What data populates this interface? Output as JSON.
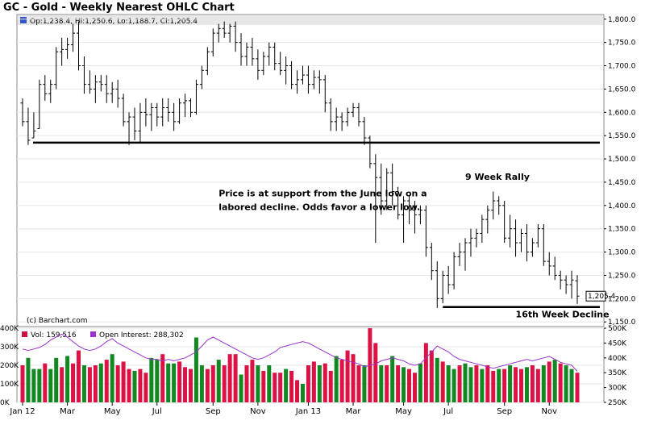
{
  "chart_data": {
    "type": "ohlc",
    "title": "GC - Gold - Weekly Nearest OHLC Chart",
    "info_line": "Op:1,238.4, Hi:1,250.6, Lo:1,188.7, Cl:1,205.4",
    "copyright": "(c) Barchart.com",
    "price_axis": {
      "min": 1140,
      "max": 1810,
      "ticks": [
        "1,150.0",
        "1,200.0",
        "1,250.0",
        "1,300.0",
        "1,350.0",
        "1,400.0",
        "1,450.0",
        "1,500.0",
        "1,550.0",
        "1,600.0",
        "1,650.0",
        "1,700.0",
        "1,750.0",
        "1,800.0"
      ],
      "tick_values": [
        1150,
        1200,
        1250,
        1300,
        1350,
        1400,
        1450,
        1500,
        1550,
        1600,
        1650,
        1700,
        1750,
        1800
      ]
    },
    "last_price_label": "1,205.4",
    "last_price": 1205.4,
    "x_labels": [
      "Jan 12",
      "Mar",
      "May",
      "Jul",
      "Sep",
      "Nov",
      "Jan 13",
      "Mar",
      "May",
      "Jul",
      "Sep",
      "Nov"
    ],
    "x_label_weeks": [
      1,
      9,
      17,
      25,
      35,
      43,
      52,
      60,
      69,
      77,
      87,
      95
    ],
    "ohlc": [
      [
        1620,
        1630,
        1570,
        1580
      ],
      [
        1580,
        1610,
        1530,
        1540
      ],
      [
        1545,
        1600,
        1545,
        1560
      ],
      [
        1565,
        1670,
        1565,
        1660
      ],
      [
        1660,
        1680,
        1625,
        1640
      ],
      [
        1640,
        1670,
        1620,
        1660
      ],
      [
        1660,
        1740,
        1650,
        1730
      ],
      [
        1730,
        1760,
        1700,
        1735
      ],
      [
        1735,
        1760,
        1715,
        1745
      ],
      [
        1745,
        1790,
        1730,
        1770
      ],
      [
        1770,
        1795,
        1690,
        1700
      ],
      [
        1700,
        1720,
        1640,
        1660
      ],
      [
        1660,
        1690,
        1640,
        1650
      ],
      [
        1650,
        1680,
        1620,
        1665
      ],
      [
        1665,
        1680,
        1645,
        1660
      ],
      [
        1660,
        1680,
        1620,
        1640
      ],
      [
        1640,
        1665,
        1620,
        1650
      ],
      [
        1650,
        1670,
        1610,
        1630
      ],
      [
        1630,
        1640,
        1570,
        1580
      ],
      [
        1580,
        1600,
        1530,
        1590
      ],
      [
        1590,
        1610,
        1540,
        1560
      ],
      [
        1560,
        1620,
        1535,
        1600
      ],
      [
        1600,
        1630,
        1570,
        1595
      ],
      [
        1595,
        1620,
        1560,
        1610
      ],
      [
        1610,
        1620,
        1570,
        1590
      ],
      [
        1590,
        1630,
        1570,
        1610
      ],
      [
        1610,
        1630,
        1580,
        1600
      ],
      [
        1600,
        1620,
        1560,
        1580
      ],
      [
        1580,
        1630,
        1575,
        1620
      ],
      [
        1620,
        1640,
        1590,
        1625
      ],
      [
        1625,
        1630,
        1590,
        1600
      ],
      [
        1600,
        1670,
        1595,
        1660
      ],
      [
        1660,
        1700,
        1650,
        1690
      ],
      [
        1690,
        1740,
        1680,
        1730
      ],
      [
        1730,
        1780,
        1720,
        1770
      ],
      [
        1770,
        1790,
        1750,
        1780
      ],
      [
        1780,
        1795,
        1760,
        1770
      ],
      [
        1770,
        1790,
        1750,
        1785
      ],
      [
        1785,
        1795,
        1730,
        1750
      ],
      [
        1750,
        1770,
        1700,
        1720
      ],
      [
        1720,
        1750,
        1700,
        1740
      ],
      [
        1740,
        1760,
        1700,
        1715
      ],
      [
        1715,
        1735,
        1670,
        1690
      ],
      [
        1690,
        1730,
        1680,
        1720
      ],
      [
        1720,
        1750,
        1700,
        1740
      ],
      [
        1740,
        1750,
        1690,
        1705
      ],
      [
        1705,
        1730,
        1680,
        1690
      ],
      [
        1690,
        1720,
        1660,
        1700
      ],
      [
        1700,
        1710,
        1650,
        1660
      ],
      [
        1660,
        1690,
        1640,
        1670
      ],
      [
        1670,
        1700,
        1660,
        1680
      ],
      [
        1680,
        1700,
        1640,
        1660
      ],
      [
        1660,
        1690,
        1650,
        1675
      ],
      [
        1675,
        1690,
        1640,
        1670
      ],
      [
        1670,
        1680,
        1600,
        1620
      ],
      [
        1620,
        1630,
        1560,
        1580
      ],
      [
        1580,
        1610,
        1560,
        1590
      ],
      [
        1590,
        1600,
        1560,
        1580
      ],
      [
        1580,
        1610,
        1570,
        1600
      ],
      [
        1600,
        1620,
        1590,
        1610
      ],
      [
        1610,
        1620,
        1570,
        1580
      ],
      [
        1580,
        1590,
        1530,
        1545
      ],
      [
        1545,
        1550,
        1480,
        1490
      ],
      [
        1490,
        1510,
        1320,
        1460
      ],
      [
        1460,
        1490,
        1380,
        1410
      ],
      [
        1410,
        1480,
        1390,
        1470
      ],
      [
        1470,
        1490,
        1400,
        1430
      ],
      [
        1430,
        1440,
        1370,
        1380
      ],
      [
        1380,
        1420,
        1320,
        1410
      ],
      [
        1410,
        1420,
        1360,
        1390
      ],
      [
        1390,
        1410,
        1340,
        1380
      ],
      [
        1380,
        1400,
        1360,
        1390
      ],
      [
        1390,
        1400,
        1290,
        1310
      ],
      [
        1310,
        1320,
        1240,
        1260
      ],
      [
        1260,
        1280,
        1180,
        1200
      ],
      [
        1200,
        1260,
        1190,
        1250
      ],
      [
        1250,
        1270,
        1210,
        1230
      ],
      [
        1230,
        1300,
        1220,
        1290
      ],
      [
        1290,
        1320,
        1270,
        1300
      ],
      [
        1300,
        1330,
        1260,
        1320
      ],
      [
        1320,
        1350,
        1290,
        1330
      ],
      [
        1330,
        1350,
        1310,
        1340
      ],
      [
        1340,
        1380,
        1320,
        1370
      ],
      [
        1370,
        1400,
        1340,
        1390
      ],
      [
        1390,
        1430,
        1370,
        1410
      ],
      [
        1410,
        1420,
        1380,
        1400
      ],
      [
        1400,
        1410,
        1320,
        1330
      ],
      [
        1330,
        1380,
        1310,
        1350
      ],
      [
        1350,
        1370,
        1290,
        1320
      ],
      [
        1320,
        1350,
        1300,
        1340
      ],
      [
        1340,
        1360,
        1280,
        1300
      ],
      [
        1300,
        1330,
        1290,
        1320
      ],
      [
        1320,
        1360,
        1310,
        1350
      ],
      [
        1350,
        1360,
        1270,
        1280
      ],
      [
        1280,
        1300,
        1250,
        1270
      ],
      [
        1270,
        1290,
        1240,
        1250
      ],
      [
        1250,
        1260,
        1220,
        1240
      ],
      [
        1240,
        1250,
        1210,
        1230
      ],
      [
        1230,
        1260,
        1200,
        1240
      ],
      [
        1238.4,
        1250.6,
        1188.7,
        1205.4
      ]
    ],
    "support_lines": [
      {
        "price": 1535,
        "from_week": 1,
        "to_week": 100
      },
      {
        "price": 1182,
        "from_week": 76,
        "to_week": 100
      }
    ],
    "annotations": [
      {
        "text": "Price is at support from the June low on a",
        "week": 36,
        "price": 1420
      },
      {
        "text": "labored decline.  Odds favor a lower low.",
        "week": 36,
        "price": 1390
      },
      {
        "text": "9 Week Rally",
        "week": 80,
        "price": 1455
      },
      {
        "text": "16th Week Decline",
        "week": 89,
        "price": 1160
      }
    ],
    "volume_panel": {
      "vol_label": "Vol: 159,516",
      "oi_label": "Open Interest: 288,302",
      "vol_color": "#cc1144",
      "oi_color": "#9933cc",
      "left_axis": {
        "min": 0,
        "max": 400000,
        "ticks": [
          "0K",
          "100K",
          "200K",
          "300K",
          "400K"
        ]
      },
      "right_axis": {
        "min": 250000,
        "max": 500000,
        "ticks": [
          "250K",
          "300K",
          "350K",
          "400K",
          "450K",
          "500K"
        ]
      },
      "volumes": [
        200,
        240,
        180,
        180,
        210,
        180,
        240,
        190,
        250,
        210,
        280,
        200,
        190,
        200,
        210,
        230,
        260,
        200,
        220,
        180,
        170,
        180,
        160,
        240,
        230,
        260,
        210,
        210,
        220,
        190,
        180,
        350,
        200,
        180,
        200,
        230,
        200,
        260,
        260,
        150,
        200,
        230,
        200,
        170,
        200,
        160,
        160,
        180,
        170,
        120,
        100,
        200,
        220,
        200,
        210,
        170,
        250,
        230,
        280,
        260,
        200,
        200,
        400,
        320,
        200,
        200,
        250,
        200,
        190,
        180,
        160,
        210,
        320,
        280,
        240,
        220,
        200,
        180,
        200,
        210,
        190,
        200,
        180,
        200,
        170,
        180,
        180,
        200,
        190,
        180,
        190,
        200,
        180,
        200,
        220,
        230,
        210,
        200,
        180,
        160
      ],
      "volume_colors": [
        "red",
        "green",
        "green",
        "green",
        "red",
        "green",
        "green",
        "red",
        "green",
        "red",
        "red",
        "green",
        "red",
        "red",
        "green",
        "red",
        "green",
        "red",
        "red",
        "red",
        "green",
        "red",
        "red",
        "green",
        "green",
        "red",
        "green",
        "green",
        "red",
        "red",
        "red",
        "green",
        "green",
        "red",
        "red",
        "green",
        "red",
        "red",
        "red",
        "green",
        "red",
        "red",
        "green",
        "red",
        "green",
        "red",
        "red",
        "green",
        "red",
        "red",
        "green",
        "red",
        "red",
        "green",
        "red",
        "red",
        "green",
        "red",
        "red",
        "red",
        "red",
        "green",
        "red",
        "red",
        "green",
        "red",
        "green",
        "red",
        "green",
        "red",
        "red",
        "green",
        "red",
        "red",
        "green",
        "red",
        "green",
        "green",
        "red",
        "green",
        "green",
        "red",
        "green",
        "red",
        "red",
        "green",
        "red",
        "green",
        "red",
        "red",
        "green",
        "red",
        "red",
        "green",
        "red",
        "green",
        "red",
        "green",
        "green",
        "red"
      ],
      "open_interest": [
        430,
        425,
        430,
        435,
        445,
        460,
        470,
        480,
        470,
        455,
        440,
        430,
        425,
        430,
        440,
        455,
        465,
        450,
        440,
        430,
        420,
        410,
        400,
        395,
        395,
        390,
        395,
        390,
        395,
        400,
        410,
        420,
        440,
        460,
        470,
        460,
        450,
        440,
        430,
        420,
        410,
        400,
        395,
        400,
        410,
        420,
        435,
        440,
        445,
        450,
        455,
        450,
        440,
        430,
        420,
        410,
        400,
        395,
        390,
        385,
        380,
        370,
        375,
        380,
        390,
        395,
        400,
        395,
        390,
        380,
        375,
        380,
        400,
        420,
        440,
        430,
        420,
        405,
        395,
        390,
        385,
        380,
        375,
        370,
        365,
        370,
        375,
        380,
        385,
        390,
        395,
        390,
        395,
        400,
        405,
        395,
        385,
        380,
        375,
        355
      ]
    }
  }
}
